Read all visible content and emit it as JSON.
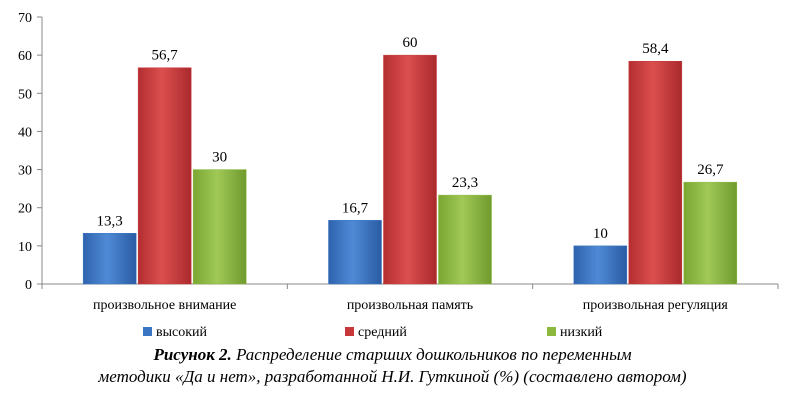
{
  "chart_data": {
    "type": "bar",
    "categories": [
      "произвольное внимание",
      "произвольная память",
      "произвольная регуляция"
    ],
    "series": [
      {
        "name": "высокий",
        "values": [
          13.3,
          16.7,
          10
        ],
        "labels": [
          "13,3",
          "16,7",
          "10"
        ],
        "color": "#3a75c4"
      },
      {
        "name": "средний",
        "values": [
          56.7,
          60,
          58.4
        ],
        "labels": [
          "56,7",
          "60",
          "58,4"
        ],
        "color": "#c8383a"
      },
      {
        "name": "низкий",
        "values": [
          30,
          23.3,
          26.7
        ],
        "labels": [
          "30",
          "23,3",
          "26,7"
        ],
        "color": "#8db83e"
      }
    ],
    "ylim": [
      0,
      70
    ],
    "yticks": [
      0,
      10,
      20,
      30,
      40,
      50,
      60,
      70
    ],
    "legend": "bottom",
    "grid": false
  },
  "caption": {
    "bold": "Рисунок 2.",
    "line1": "Распределение старших дошкольников по переменным",
    "line2": "методики «Да и нет», разработанной Н.И. Гуткиной (%) (составлено автором)"
  }
}
